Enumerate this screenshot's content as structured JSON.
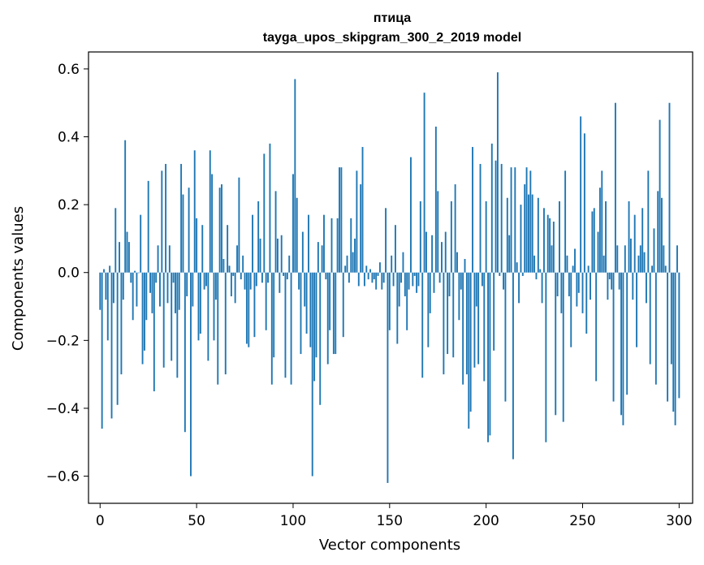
{
  "chart_data": {
    "type": "bar",
    "title": "птица",
    "subtitle": "tayga_upos_skipgram_300_2_2019 model",
    "xlabel": "Vector components",
    "ylabel": "Components values",
    "xlim": [
      -6,
      307
    ],
    "ylim": [
      -0.68,
      0.65
    ],
    "xticks": [
      0,
      50,
      100,
      150,
      200,
      250,
      300
    ],
    "yticks": [
      -0.6,
      -0.4,
      -0.2,
      0.0,
      0.2,
      0.4,
      0.6
    ],
    "ytick_labels": [
      "−0.6",
      "−0.4",
      "−0.2",
      "0.0",
      "0.2",
      "0.4",
      "0.6"
    ],
    "bar_color": "#1f77b4",
    "values": [
      -0.11,
      -0.46,
      0.01,
      -0.08,
      -0.2,
      0.02,
      -0.43,
      -0.09,
      0.19,
      -0.39,
      0.09,
      -0.3,
      -0.08,
      0.39,
      0.12,
      0.09,
      -0.03,
      -0.14,
      0.005,
      -0.1,
      0.0,
      0.17,
      -0.27,
      -0.23,
      -0.14,
      0.27,
      -0.06,
      -0.12,
      -0.35,
      -0.03,
      0.08,
      -0.1,
      0.3,
      -0.28,
      0.32,
      -0.09,
      0.08,
      -0.26,
      -0.03,
      -0.12,
      -0.31,
      -0.11,
      0.32,
      0.23,
      -0.47,
      -0.07,
      0.25,
      -0.6,
      -0.1,
      0.36,
      0.16,
      -0.2,
      -0.18,
      0.14,
      -0.05,
      -0.04,
      -0.26,
      0.36,
      0.29,
      -0.2,
      -0.08,
      -0.33,
      0.25,
      0.26,
      0.04,
      -0.3,
      0.14,
      0.02,
      -0.07,
      -0.01,
      -0.09,
      0.08,
      0.28,
      -0.02,
      0.05,
      -0.05,
      -0.21,
      -0.22,
      -0.05,
      0.17,
      -0.19,
      -0.04,
      0.21,
      0.1,
      -0.03,
      0.35,
      -0.17,
      -0.03,
      0.38,
      -0.33,
      -0.25,
      0.24,
      0.1,
      -0.06,
      0.11,
      -0.01,
      -0.31,
      -0.02,
      0.05,
      -0.33,
      0.29,
      0.57,
      0.22,
      -0.05,
      -0.24,
      0.12,
      -0.1,
      -0.18,
      0.17,
      -0.22,
      -0.6,
      -0.32,
      -0.25,
      0.09,
      -0.39,
      0.08,
      0.17,
      -0.02,
      -0.27,
      -0.17,
      0.16,
      -0.24,
      -0.24,
      0.16,
      0.31,
      0.31,
      -0.19,
      0.02,
      0.05,
      -0.03,
      0.16,
      0.06,
      0.1,
      0.3,
      -0.04,
      0.26,
      0.37,
      -0.04,
      0.02,
      -0.02,
      0.01,
      -0.03,
      -0.02,
      -0.05,
      -0.01,
      0.03,
      -0.05,
      -0.03,
      0.19,
      -0.62,
      -0.17,
      0.05,
      -0.04,
      0.14,
      -0.21,
      -0.1,
      -0.03,
      0.06,
      -0.07,
      -0.17,
      -0.05,
      0.34,
      -0.04,
      -0.01,
      -0.06,
      -0.04,
      0.21,
      -0.31,
      0.53,
      0.12,
      -0.22,
      -0.12,
      0.11,
      -0.06,
      0.43,
      0.24,
      -0.03,
      0.09,
      -0.3,
      0.12,
      -0.24,
      -0.07,
      0.21,
      -0.25,
      0.26,
      0.06,
      -0.14,
      -0.05,
      -0.33,
      0.04,
      -0.3,
      -0.46,
      -0.41,
      0.37,
      -0.28,
      -0.1,
      -0.27,
      0.32,
      -0.04,
      -0.32,
      0.21,
      -0.5,
      -0.48,
      0.38,
      -0.23,
      0.33,
      0.59,
      -0.01,
      0.32,
      -0.05,
      -0.38,
      0.22,
      0.11,
      0.31,
      -0.55,
      0.31,
      0.03,
      -0.09,
      0.2,
      -0.01,
      0.26,
      0.31,
      0.23,
      0.3,
      0.23,
      0.05,
      -0.02,
      0.22,
      0.01,
      -0.09,
      0.19,
      -0.5,
      0.17,
      0.16,
      0.08,
      0.15,
      -0.42,
      -0.07,
      0.21,
      -0.12,
      -0.44,
      0.3,
      0.05,
      -0.07,
      -0.22,
      0.02,
      0.07,
      -0.1,
      -0.06,
      0.46,
      -0.12,
      0.41,
      -0.18,
      0.02,
      -0.08,
      0.18,
      0.19,
      -0.32,
      0.12,
      0.25,
      0.3,
      0.05,
      0.21,
      -0.08,
      -0.02,
      -0.05,
      -0.38,
      0.5,
      0.08,
      -0.05,
      -0.42,
      -0.45,
      0.08,
      -0.36,
      0.21,
      0.1,
      -0.08,
      0.17,
      -0.22,
      0.05,
      0.08,
      0.19,
      0.06,
      -0.09,
      0.3,
      -0.27,
      0.02,
      0.13,
      -0.33,
      0.24,
      0.45,
      0.22,
      0.08,
      0.02,
      -0.38,
      0.5,
      -0.27,
      -0.41,
      -0.45,
      0.08,
      -0.37
    ]
  }
}
